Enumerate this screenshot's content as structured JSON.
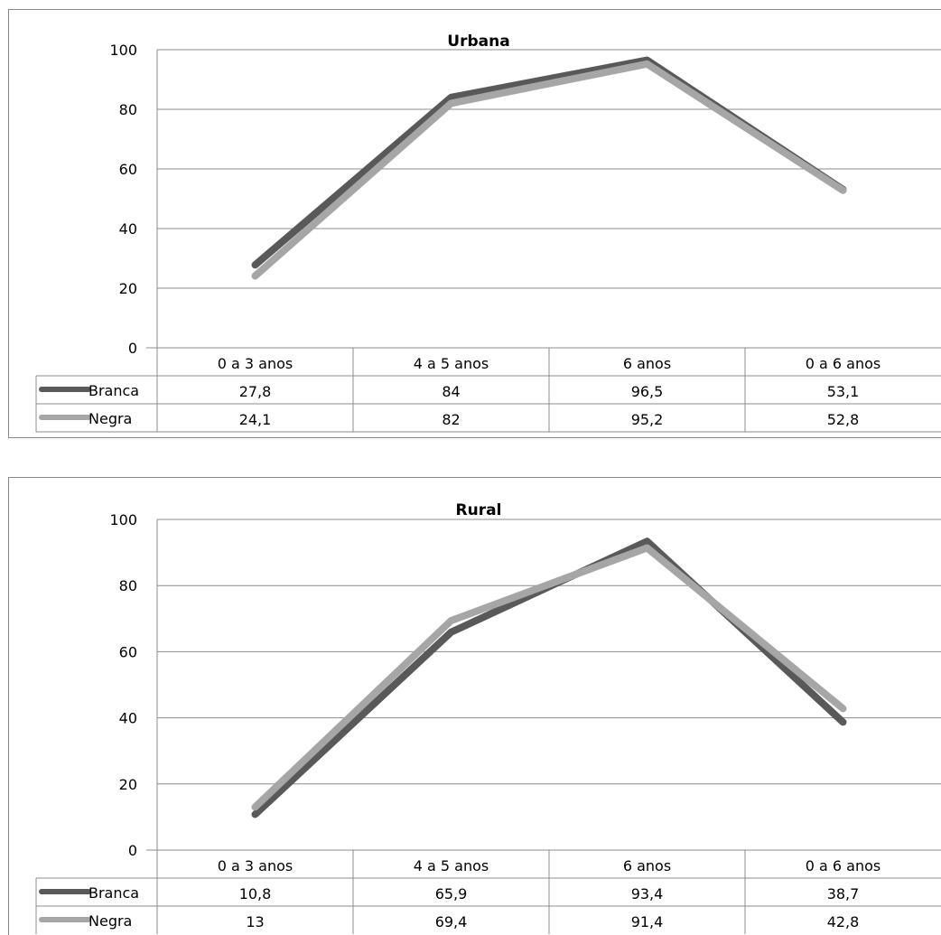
{
  "chart_data": [
    {
      "type": "line",
      "title": "Urbana",
      "categories": [
        "0 a 3 anos",
        "4 a 5 anos",
        "6 anos",
        "0 a 6 anos"
      ],
      "ylim": [
        0,
        100
      ],
      "yticks": [
        "0",
        "20",
        "40",
        "60",
        "80",
        "100"
      ],
      "grid": true,
      "legend_placement": "data-table-left",
      "series": [
        {
          "name": "Branca",
          "values": [
            27.8,
            84,
            96.5,
            53.1
          ],
          "labels": [
            "27,8",
            "84",
            "96,5",
            "53,1"
          ],
          "color": "#595959"
        },
        {
          "name": "Negra",
          "values": [
            24.1,
            82,
            95.2,
            52.8
          ],
          "labels": [
            "24,1",
            "82",
            "95,2",
            "52,8"
          ],
          "color": "#a6a6a6"
        }
      ]
    },
    {
      "type": "line",
      "title": "Rural",
      "categories": [
        "0 a 3 anos",
        "4 a 5 anos",
        "6 anos",
        "0 a 6 anos"
      ],
      "ylim": [
        0,
        100
      ],
      "yticks": [
        "0",
        "20",
        "40",
        "60",
        "80",
        "100"
      ],
      "grid": true,
      "legend_placement": "data-table-left",
      "series": [
        {
          "name": "Branca",
          "values": [
            10.8,
            65.9,
            93.4,
            38.7
          ],
          "labels": [
            "10,8",
            "65,9",
            "93,4",
            "38,7"
          ],
          "color": "#595959"
        },
        {
          "name": "Negra",
          "values": [
            13,
            69.4,
            91.4,
            42.8
          ],
          "labels": [
            "13",
            "69,4",
            "91,4",
            "42,8"
          ],
          "color": "#a6a6a6"
        }
      ]
    }
  ]
}
